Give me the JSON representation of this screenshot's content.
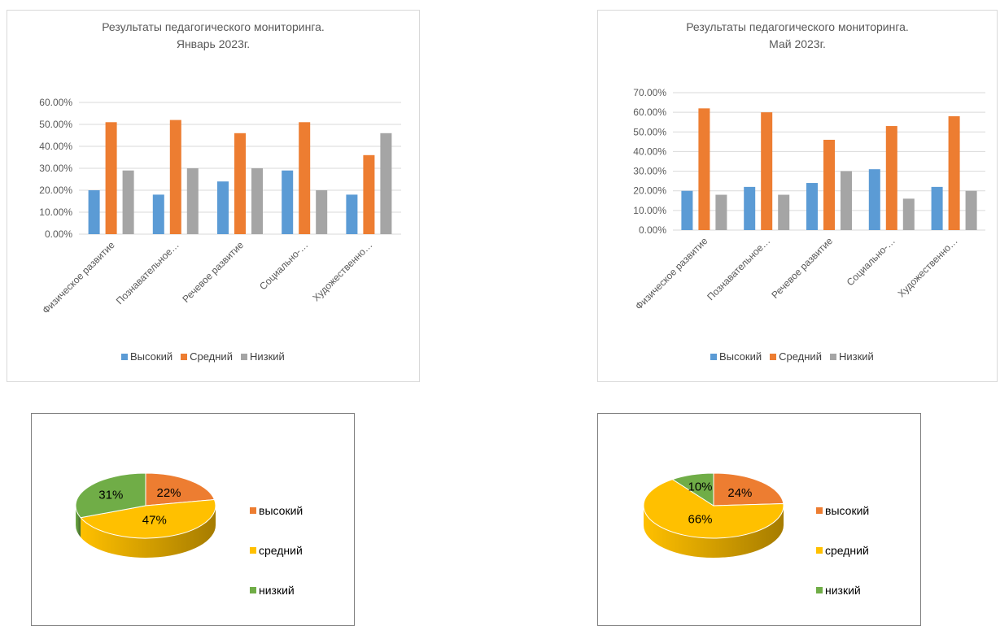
{
  "chart_data": [
    {
      "type": "bar",
      "title": "Результаты педагогического мониторинга.",
      "subtitle": "Январь 2023г.",
      "categories": [
        "Физическое развитие",
        "Познавательное…",
        "Речевое развитие",
        "Социально-…",
        "Художественно…"
      ],
      "series": [
        {
          "name": "Высокий",
          "values": [
            0.2,
            0.18,
            0.24,
            0.29,
            0.18
          ],
          "color": "#5b9bd5"
        },
        {
          "name": "Средний",
          "values": [
            0.51,
            0.52,
            0.46,
            0.51,
            0.36
          ],
          "color": "#ed7d31"
        },
        {
          "name": "Низкий",
          "values": [
            0.29,
            0.3,
            0.3,
            0.2,
            0.46
          ],
          "color": "#a5a5a5"
        }
      ],
      "y_ticks": [
        "0.00%",
        "10.00%",
        "20.00%",
        "30.00%",
        "40.00%",
        "50.00%",
        "60.00%"
      ],
      "ylim": [
        0,
        0.6
      ],
      "grid": true,
      "legend": "bottom"
    },
    {
      "type": "bar",
      "title": "Результаты педагогического мониторинга.",
      "subtitle": "Май 2023г.",
      "categories": [
        "Физическое развитие",
        "Познавательное…",
        "Речевое развитие",
        "Социально-…",
        "Художественно…"
      ],
      "series": [
        {
          "name": "Высокий",
          "values": [
            0.2,
            0.22,
            0.24,
            0.31,
            0.22
          ],
          "color": "#5b9bd5"
        },
        {
          "name": "Средний",
          "values": [
            0.62,
            0.6,
            0.46,
            0.53,
            0.58
          ],
          "color": "#ed7d31"
        },
        {
          "name": "Низкий",
          "values": [
            0.18,
            0.18,
            0.3,
            0.16,
            0.2
          ],
          "color": "#a5a5a5"
        }
      ],
      "y_ticks": [
        "0.00%",
        "10.00%",
        "20.00%",
        "30.00%",
        "40.00%",
        "50.00%",
        "60.00%",
        "70.00%"
      ],
      "ylim": [
        0,
        0.7
      ],
      "grid": true,
      "legend": "bottom"
    },
    {
      "type": "pie",
      "labels": [
        "высокий",
        "средний",
        "низкий"
      ],
      "values": [
        22,
        47,
        31
      ],
      "value_labels": [
        "22%",
        "47%",
        "31%"
      ],
      "colors": [
        "#ed7d31",
        "#ffc000",
        "#70ad47"
      ],
      "legend": "right"
    },
    {
      "type": "pie",
      "labels": [
        "высокий",
        "средний",
        "низкий"
      ],
      "values": [
        24,
        66,
        10
      ],
      "value_labels": [
        "24%",
        "66%",
        "10%"
      ],
      "colors": [
        "#ed7d31",
        "#ffc000",
        "#70ad47"
      ],
      "legend": "right"
    }
  ]
}
